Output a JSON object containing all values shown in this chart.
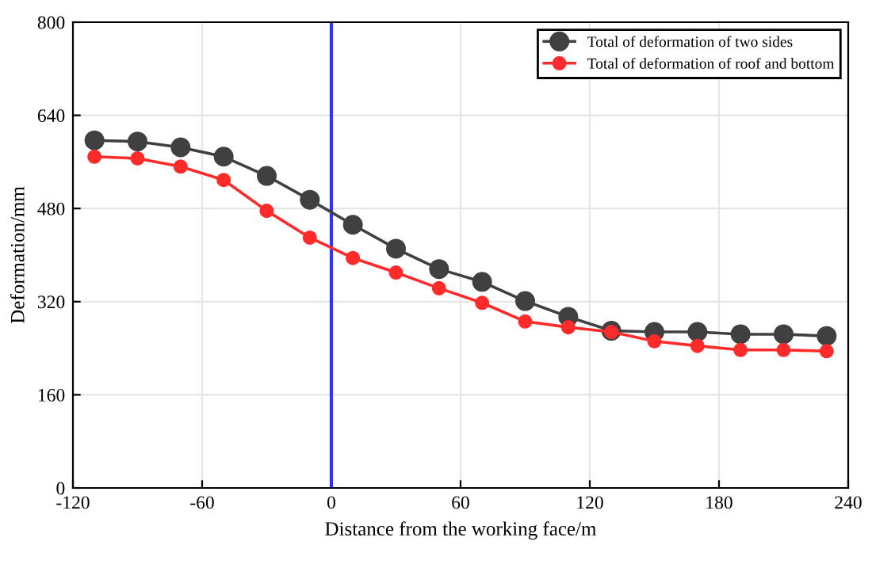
{
  "chart_data": {
    "type": "line",
    "xlabel": "Distance from the working face/m",
    "ylabel": "Deformation/mm",
    "x": [
      -110,
      -90,
      -70,
      -50,
      -30,
      -10,
      10,
      30,
      50,
      70,
      90,
      110,
      130,
      150,
      170,
      190,
      210,
      230
    ],
    "series": [
      {
        "name": "Total of deformation of two sides",
        "color": "#404040",
        "values": [
          597,
          595,
          585,
          569,
          536,
          495,
          452,
          411,
          376,
          354,
          321,
          294,
          270,
          268,
          268,
          264,
          264,
          261
        ]
      },
      {
        "name": "Total of deformation of roof and bottom",
        "color": "#ff2b2b",
        "values": [
          569,
          566,
          552,
          529,
          476,
          430,
          395,
          370,
          343,
          318,
          286,
          276,
          268,
          252,
          244,
          237,
          237,
          235
        ]
      }
    ],
    "xlim": [
      -120,
      240
    ],
    "xticks": [
      -120,
      -60,
      0,
      60,
      120,
      180,
      240
    ],
    "ylim": [
      0,
      800
    ],
    "yticks": [
      0,
      160,
      320,
      480,
      640,
      800
    ],
    "ref_lines": [
      {
        "axis": "x",
        "value": 0,
        "color": "#3333ff",
        "line_style": "solid"
      }
    ],
    "grid": true,
    "legend": "top right",
    "marker": "circle",
    "line_style": "solid"
  }
}
